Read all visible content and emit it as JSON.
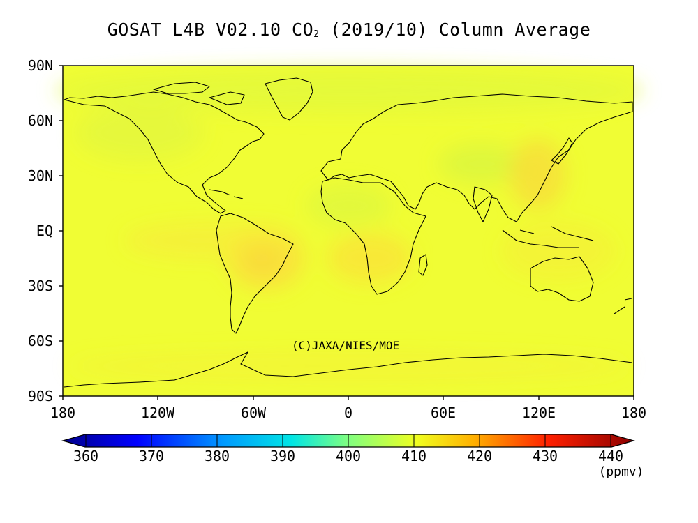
{
  "title_main": "GOSAT L4B V02.10 CO",
  "title_sub": "2",
  "title_rest": " (2019/10) Column Average",
  "credit": "(C)JAXA/NIES/MOE",
  "lat_labels": [
    "90N",
    "60N",
    "30N",
    "EQ",
    "30S",
    "60S",
    "90S"
  ],
  "lon_labels": [
    "180",
    "120W",
    "60W",
    "0",
    "60E",
    "120E",
    "180"
  ],
  "colorbar": {
    "ticks": [
      "360",
      "370",
      "380",
      "390",
      "400",
      "410",
      "420",
      "430",
      "440"
    ],
    "unit": "(ppmv)",
    "colors": [
      "#00008b",
      "#0000ff",
      "#0066ff",
      "#00ccff",
      "#66ff99",
      "#ccff33",
      "#ffcc00",
      "#ff6600",
      "#ff0000",
      "#8b0000"
    ]
  },
  "map_colors": {
    "background": "#f0fd34",
    "high": "#fbe83a",
    "higher": "#f9d33e",
    "low": "#d9f540"
  }
}
